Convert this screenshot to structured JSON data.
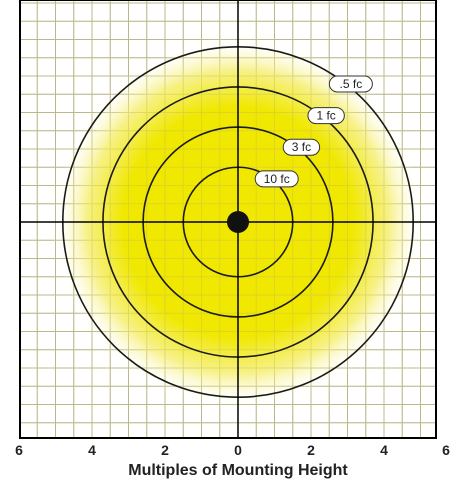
{
  "chart_data": {
    "type": "isolux-contour",
    "title": "",
    "xlabel": "Multiples of Mounting Height",
    "ylabel": "",
    "xlim": [
      -6,
      6
    ],
    "ylim": [
      -6,
      6
    ],
    "x_tick_values": [
      -6,
      -4,
      -2,
      0,
      2,
      4,
      6
    ],
    "x_tick_labels": [
      "6",
      "4",
      "2",
      "0",
      "2",
      "4",
      "6"
    ],
    "grid": true,
    "center": [
      0,
      0
    ],
    "contours": [
      {
        "label": "10 fc",
        "radius": 1.5
      },
      {
        "label": "3 fc",
        "radius": 2.6
      },
      {
        "label": "1 fc",
        "radius": 3.7
      },
      {
        "label": ".5 fc",
        "radius": 4.8
      }
    ],
    "colors": {
      "fill_center": "#f0e800",
      "fill_edge": "#ffffff",
      "contour": "#1a1a1a",
      "grid": "#b5b5b5",
      "axis": "#000000",
      "center_dot": "#111111"
    }
  }
}
